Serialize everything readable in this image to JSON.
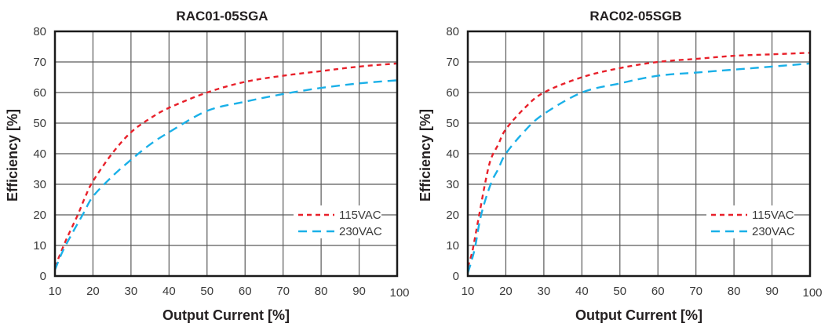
{
  "chart_data": [
    {
      "type": "line",
      "title": "RAC01-05SGA",
      "xlabel": "Output Current [%]",
      "ylabel": "Efficiency [%]",
      "xlim": [
        10,
        100
      ],
      "ylim": [
        0,
        80
      ],
      "xticks": [
        "10",
        "20",
        "30",
        "40",
        "50",
        "60",
        "70",
        "80",
        "90",
        "100"
      ],
      "yticks": [
        "0",
        "10",
        "20",
        "30",
        "40",
        "50",
        "60",
        "70",
        "80"
      ],
      "grid": true,
      "legend_position": "lower-right",
      "series": [
        {
          "name": "115VAC",
          "color": "#e8202a",
          "style": "short-dash",
          "x": [
            10,
            11,
            13,
            16,
            18,
            20,
            25,
            30,
            35,
            40,
            50,
            60,
            70,
            80,
            90,
            100
          ],
          "y": [
            3,
            6,
            12,
            20,
            26,
            31,
            40,
            47,
            51.5,
            55,
            60,
            63.5,
            65.5,
            67,
            68.5,
            69.5
          ]
        },
        {
          "name": "230VAC",
          "color": "#1ab0e8",
          "style": "long-dash",
          "x": [
            10,
            12,
            15,
            17.5,
            20,
            25,
            30,
            35,
            40,
            50,
            60,
            70,
            80,
            90,
            100
          ],
          "y": [
            2,
            8,
            15,
            20.5,
            26,
            32.5,
            38,
            43,
            47,
            54,
            57,
            59.5,
            61.5,
            63,
            64
          ]
        }
      ]
    },
    {
      "type": "line",
      "title": "RAC02-05SGB",
      "xlabel": "Output Current [%]",
      "ylabel": "Efficiency [%]",
      "xlim": [
        10,
        100
      ],
      "ylim": [
        0,
        80
      ],
      "xticks": [
        "10",
        "20",
        "30",
        "40",
        "50",
        "60",
        "70",
        "80",
        "90",
        "100"
      ],
      "yticks": [
        "0",
        "10",
        "20",
        "30",
        "40",
        "50",
        "60",
        "70",
        "80"
      ],
      "grid": true,
      "legend_position": "lower-right",
      "series": [
        {
          "name": "115VAC",
          "color": "#e8202a",
          "style": "short-dash",
          "x": [
            10,
            11,
            11.5,
            13,
            14.5,
            16,
            18,
            20,
            25,
            30,
            40,
            50,
            60,
            70,
            80,
            90,
            100
          ],
          "y": [
            3,
            7,
            10,
            20,
            30,
            38,
            43,
            48,
            55,
            60,
            65,
            68,
            70,
            71,
            72,
            72.5,
            73
          ]
        },
        {
          "name": "230VAC",
          "color": "#1ab0e8",
          "style": "long-dash",
          "x": [
            10,
            11,
            12,
            13.5,
            16,
            18,
            20,
            25,
            30,
            40,
            50,
            60,
            70,
            80,
            90,
            100
          ],
          "y": [
            1,
            5,
            10,
            20,
            30,
            35,
            40,
            47.5,
            53,
            60,
            63,
            65.5,
            66.5,
            67.5,
            68.5,
            69.5
          ]
        }
      ]
    }
  ]
}
